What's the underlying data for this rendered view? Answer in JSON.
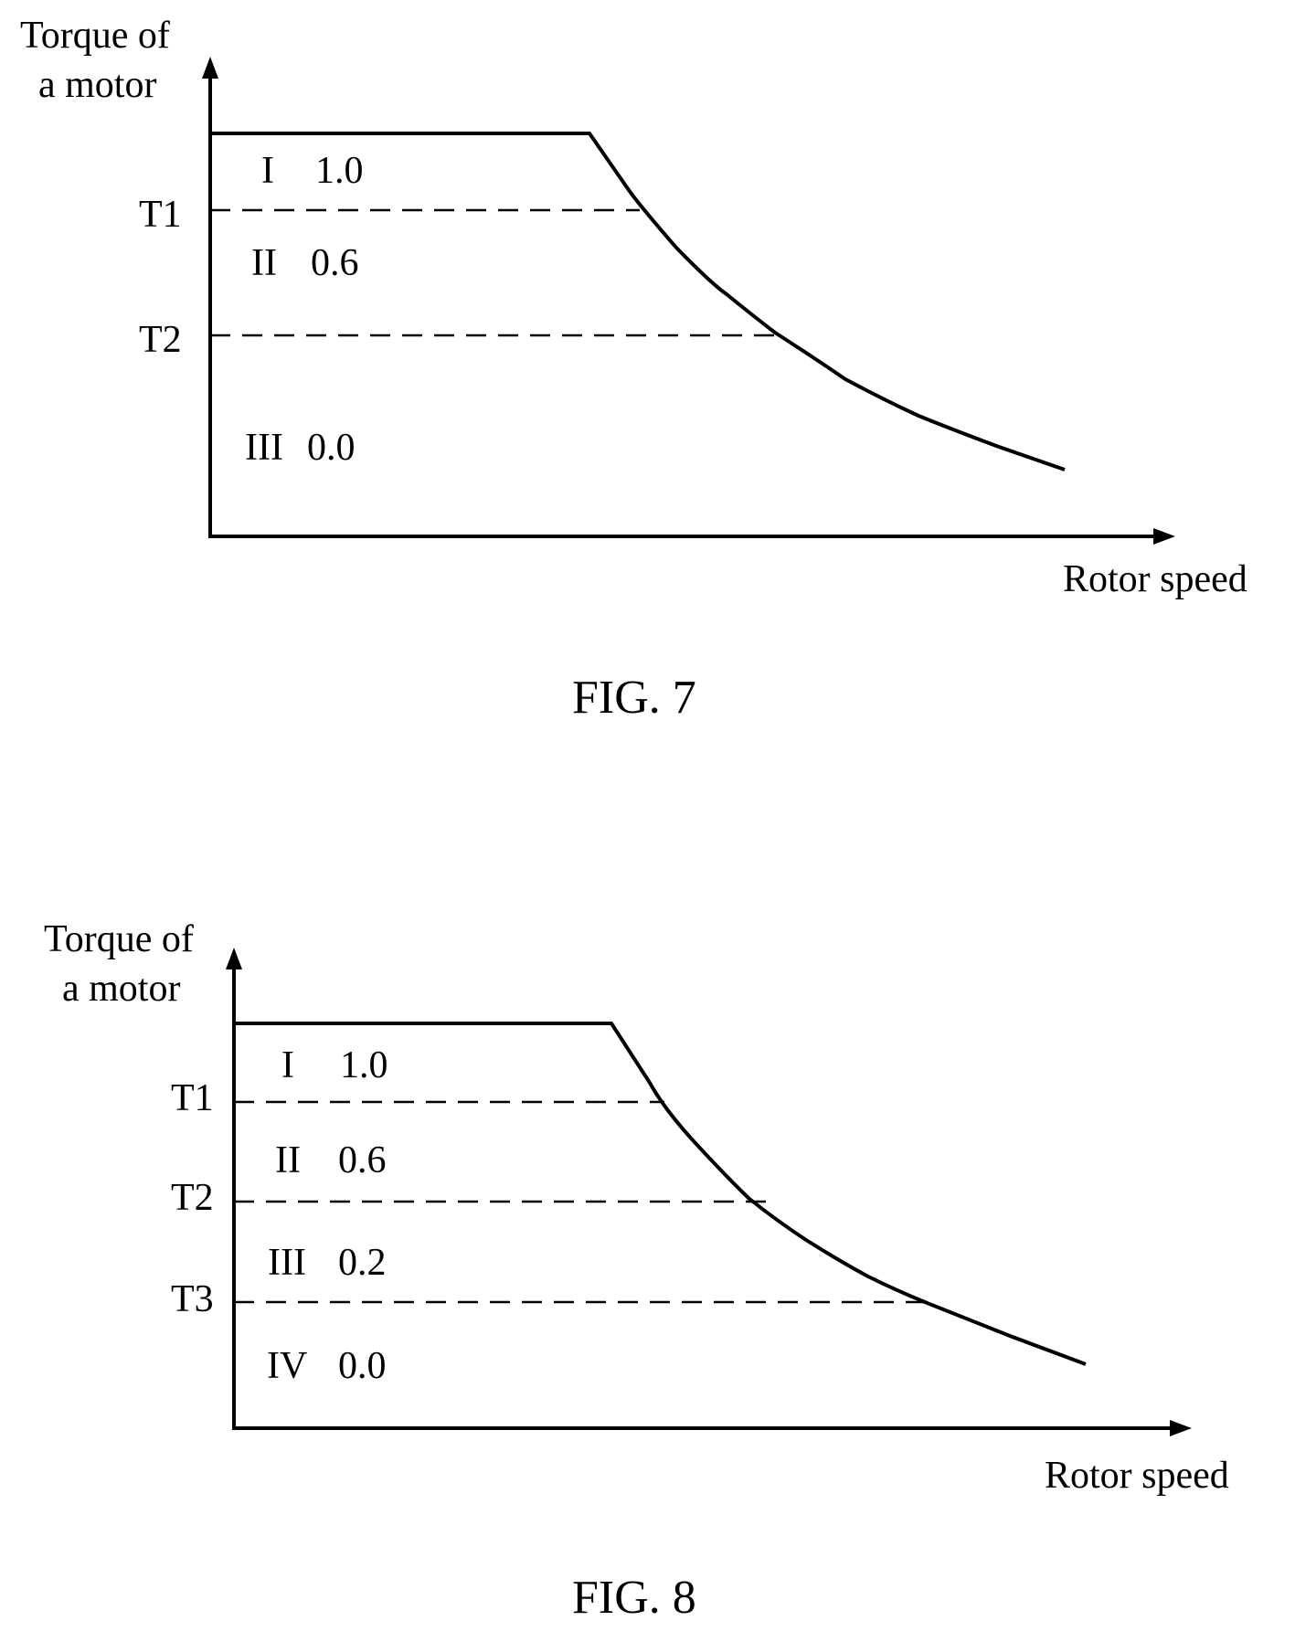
{
  "figures": [
    {
      "caption": "FIG. 7",
      "y_axis_label": [
        "Torque of",
        "a motor"
      ],
      "x_axis_label": "Rotor speed",
      "thresholds": [
        "T1",
        "T2"
      ],
      "regions": [
        {
          "numeral": "I",
          "value": "1.0"
        },
        {
          "numeral": "II",
          "value": "0.6"
        },
        {
          "numeral": "III",
          "value": "0.0"
        }
      ]
    },
    {
      "caption": "FIG. 8",
      "y_axis_label": [
        "Torque of",
        "a motor"
      ],
      "x_axis_label": "Rotor speed",
      "thresholds": [
        "T1",
        "T2",
        "T3"
      ],
      "regions": [
        {
          "numeral": "I",
          "value": "1.0"
        },
        {
          "numeral": "II",
          "value": "0.6"
        },
        {
          "numeral": "III",
          "value": "0.2"
        },
        {
          "numeral": "IV",
          "value": "0.0"
        }
      ]
    }
  ],
  "colors": {
    "ink": "#000000",
    "background": "#ffffff"
  }
}
